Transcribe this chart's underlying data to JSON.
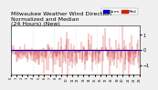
{
  "title": "Milwaukee Weather Wind Direction\nNormalized and Median\n(24 Hours) (New)",
  "title_fontsize": 4.5,
  "background_color": "#f0f0f0",
  "plot_bg_color": "#ffffff",
  "median_value": 0.0,
  "median_color": "#0000cc",
  "data_color": "#cc0000",
  "legend_colors": [
    "#0000cc",
    "#cc2200"
  ],
  "num_points": 288,
  "ylim": [
    -1.6,
    1.6
  ],
  "y_tick_right": true,
  "grid_color": "#cccccc",
  "grid_style": "dotted"
}
